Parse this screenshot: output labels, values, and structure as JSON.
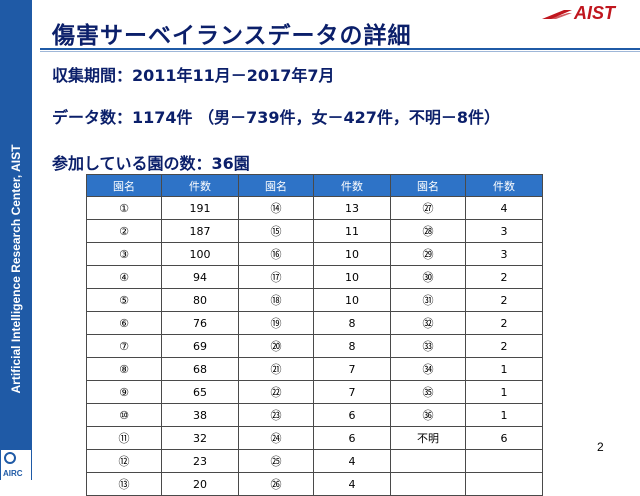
{
  "side_band": {
    "text": "Artificial Intelligence Research Center, AIST"
  },
  "logos": {
    "aist": "AIST",
    "airc": "AIRC"
  },
  "header": {
    "title": "傷害サーベイランスデータの詳細"
  },
  "info": {
    "period": "収集期間：2011年11月－2017年7月",
    "count": "データ数：1174件 （男－739件，女－427件，不明－8件）",
    "parks": "参加している園の数：36園"
  },
  "table": {
    "headers": [
      "園名",
      "件数",
      "園名",
      "件数",
      "園名",
      "件数"
    ],
    "rows": [
      [
        "①",
        "191",
        "⑭",
        "13",
        "㉗",
        "4"
      ],
      [
        "②",
        "187",
        "⑮",
        "11",
        "㉘",
        "3"
      ],
      [
        "③",
        "100",
        "⑯",
        "10",
        "㉙",
        "3"
      ],
      [
        "④",
        "94",
        "⑰",
        "10",
        "㉚",
        "2"
      ],
      [
        "⑤",
        "80",
        "⑱",
        "10",
        "㉛",
        "2"
      ],
      [
        "⑥",
        "76",
        "⑲",
        "8",
        "㉜",
        "2"
      ],
      [
        "⑦",
        "69",
        "⑳",
        "8",
        "㉝",
        "2"
      ],
      [
        "⑧",
        "68",
        "㉑",
        "7",
        "㉞",
        "1"
      ],
      [
        "⑨",
        "65",
        "㉒",
        "7",
        "㉟",
        "1"
      ],
      [
        "⑩",
        "38",
        "㉓",
        "6",
        "㊱",
        "1"
      ],
      [
        "⑪",
        "32",
        "㉔",
        "6",
        "不明",
        "6"
      ],
      [
        "⑫",
        "23",
        "㉕",
        "4",
        "",
        ""
      ],
      [
        "⑬",
        "20",
        "㉖",
        "4",
        "",
        ""
      ]
    ]
  },
  "page_number": "2",
  "colors": {
    "band": "#1f5aa6",
    "title": "#0b1f6a",
    "table_header": "#2e73c7",
    "logo_red": "#c0161e"
  }
}
